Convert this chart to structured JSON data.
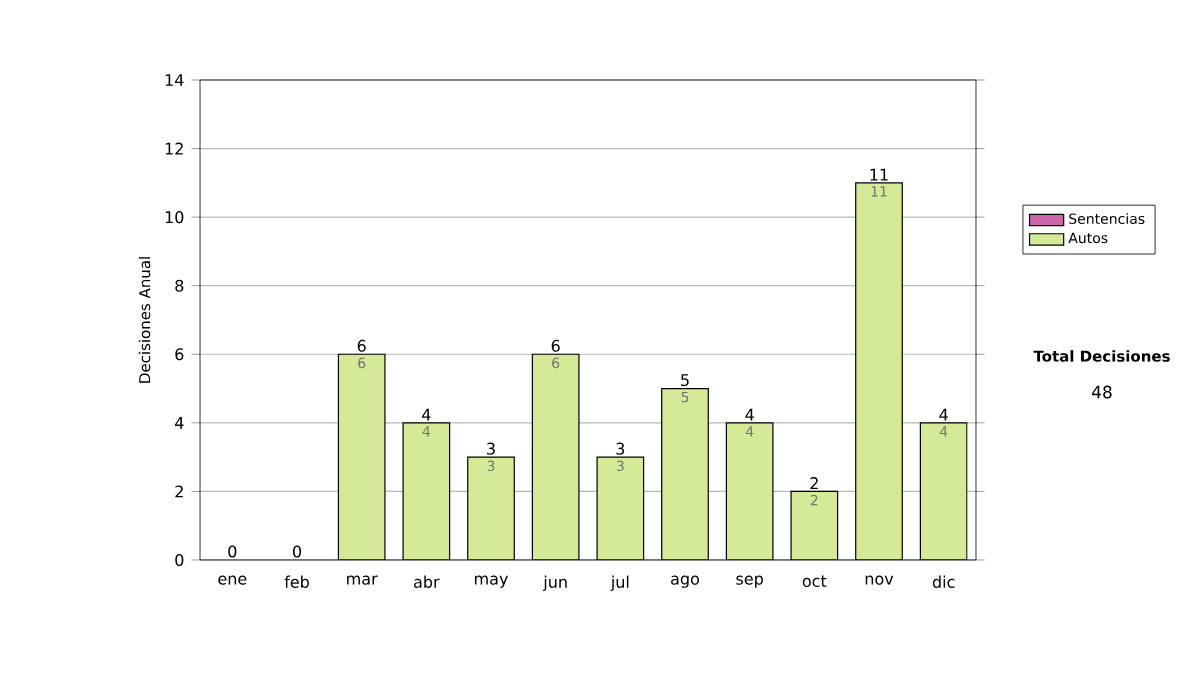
{
  "chart_data": {
    "type": "bar",
    "stacked": true,
    "ylabel": "Decisiones Anual",
    "categories": [
      "ene",
      "feb",
      "mar",
      "abr",
      "may",
      "jun",
      "jul",
      "ago",
      "sep",
      "oct",
      "nov",
      "dic"
    ],
    "series": [
      {
        "name": "Sentencias",
        "color": "#cc66aa",
        "values": [
          0,
          0,
          0,
          0,
          0,
          0,
          0,
          0,
          0,
          0,
          0,
          0
        ]
      },
      {
        "name": "Autos",
        "color": "#d5ea96",
        "values": [
          0,
          0,
          6,
          4,
          3,
          6,
          3,
          5,
          4,
          2,
          11,
          4
        ],
        "value_labels": [
          null,
          null,
          "6",
          "4",
          "3",
          "6",
          "3",
          "5",
          "4",
          "2",
          "11",
          "4"
        ]
      }
    ],
    "totals": [
      "0",
      "0",
      "6",
      "4",
      "3",
      "6",
      "3",
      "5",
      "4",
      "2",
      "11",
      "4"
    ],
    "ylim": [
      0,
      14
    ],
    "yticks": [
      0,
      2,
      4,
      6,
      8,
      10,
      12,
      14
    ],
    "grid": "y",
    "legend": "right",
    "annotations": [
      "Total Decisiones",
      "48"
    ]
  }
}
